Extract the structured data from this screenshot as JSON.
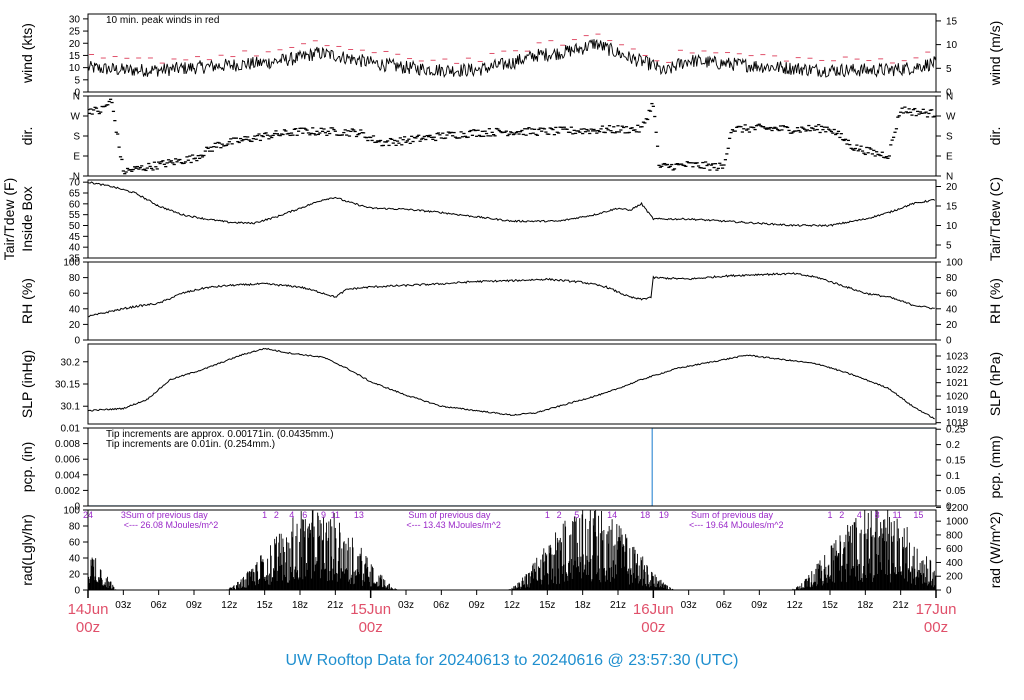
{
  "footer": {
    "title": "UW Rooftop Data for 20240613  to  20240616 @ 23:57:30  (UTC)",
    "color": "#1f8fcf"
  },
  "colors": {
    "trace": "#000000",
    "peak": "#e0506a",
    "note_tip_eng": "#e0506a",
    "note_tip_si": "#3d8fd6",
    "note_rad": "#9a28c8",
    "date_label": "#e0506a"
  },
  "x_axis": {
    "range_hours": [
      0,
      72
    ],
    "hour_ticks": [
      {
        "h": 3,
        "label": "03z"
      },
      {
        "h": 6,
        "label": "06z"
      },
      {
        "h": 9,
        "label": "09z"
      },
      {
        "h": 12,
        "label": "12z"
      },
      {
        "h": 15,
        "label": "15z"
      },
      {
        "h": 18,
        "label": "18z"
      },
      {
        "h": 21,
        "label": "21z"
      },
      {
        "h": 27,
        "label": "03z"
      },
      {
        "h": 30,
        "label": "06z"
      },
      {
        "h": 33,
        "label": "09z"
      },
      {
        "h": 36,
        "label": "12z"
      },
      {
        "h": 39,
        "label": "15z"
      },
      {
        "h": 42,
        "label": "18z"
      },
      {
        "h": 45,
        "label": "21z"
      },
      {
        "h": 51,
        "label": "03z"
      },
      {
        "h": 54,
        "label": "06z"
      },
      {
        "h": 57,
        "label": "09z"
      },
      {
        "h": 60,
        "label": "12z"
      },
      {
        "h": 63,
        "label": "15z"
      },
      {
        "h": 66,
        "label": "18z"
      },
      {
        "h": 69,
        "label": "21z"
      }
    ],
    "day_labels": [
      {
        "h": 0,
        "date": "14Jun",
        "time": "00z"
      },
      {
        "h": 24,
        "date": "15Jun",
        "time": "00z"
      },
      {
        "h": 48,
        "date": "16Jun",
        "time": "00z"
      },
      {
        "h": 72,
        "date": "17Jun",
        "time": "00z"
      }
    ]
  },
  "panels": [
    {
      "id": "wind",
      "left_label": [
        "wind (kts)"
      ],
      "right_label": "wind (m/s)",
      "left_range": [
        0,
        32
      ],
      "left_ticks": [
        0,
        5,
        10,
        15,
        20,
        25,
        30
      ],
      "right_range": [
        0,
        16.46
      ],
      "right_ticks": [
        0,
        5,
        10,
        15
      ],
      "annotations": [
        {
          "text": "10 min. peak winds in red",
          "color_key": "peak"
        }
      ],
      "series": {
        "style": "noisy-line",
        "base": [
          [
            0,
            10
          ],
          [
            3,
            9
          ],
          [
            6,
            9
          ],
          [
            9,
            10
          ],
          [
            12,
            11
          ],
          [
            15,
            12
          ],
          [
            18,
            14
          ],
          [
            19.5,
            16
          ],
          [
            21,
            15
          ],
          [
            24,
            12
          ],
          [
            27,
            10
          ],
          [
            30,
            9
          ],
          [
            33,
            9
          ],
          [
            36,
            12
          ],
          [
            38,
            15
          ],
          [
            40,
            16
          ],
          [
            42,
            18
          ],
          [
            43,
            20
          ],
          [
            44,
            18
          ],
          [
            46,
            14
          ],
          [
            48,
            11
          ],
          [
            49,
            8
          ],
          [
            50,
            11
          ],
          [
            51,
            13
          ],
          [
            53,
            12
          ],
          [
            56,
            11
          ],
          [
            59,
            10
          ],
          [
            62,
            9
          ],
          [
            65,
            9
          ],
          [
            68,
            9
          ],
          [
            70,
            10
          ],
          [
            72,
            12
          ]
        ],
        "noise": 2.8
      },
      "peaks": {
        "offset": 3.5,
        "spacing_hours": 1.0
      }
    },
    {
      "id": "dir",
      "left_label": [
        "dir."
      ],
      "right_label": "dir.",
      "left_range": [
        0,
        360
      ],
      "left_ticks": [
        0,
        90,
        180,
        270,
        360
      ],
      "tick_names": [
        "N",
        "E",
        "S",
        "W",
        "N"
      ],
      "right_range": [
        0,
        360
      ],
      "right_ticks": [
        0,
        90,
        180,
        270,
        360
      ],
      "series": {
        "style": "dashes",
        "base": [
          [
            0,
            300
          ],
          [
            1,
            290
          ],
          [
            2,
            340
          ],
          [
            3,
            20
          ],
          [
            5,
            40
          ],
          [
            7,
            60
          ],
          [
            9,
            80
          ],
          [
            10,
            110
          ],
          [
            11,
            140
          ],
          [
            13,
            160
          ],
          [
            15,
            180
          ],
          [
            18,
            200
          ],
          [
            21,
            200
          ],
          [
            23,
            195
          ],
          [
            24,
            170
          ],
          [
            25,
            150
          ],
          [
            27,
            160
          ],
          [
            30,
            180
          ],
          [
            33,
            195
          ],
          [
            36,
            200
          ],
          [
            39,
            200
          ],
          [
            42,
            205
          ],
          [
            45,
            210
          ],
          [
            47,
            210
          ],
          [
            48,
            330
          ],
          [
            48.5,
            40
          ],
          [
            51,
            50
          ],
          [
            54,
            40
          ],
          [
            54.6,
            210
          ],
          [
            57,
            215
          ],
          [
            60,
            210
          ],
          [
            63,
            215
          ],
          [
            65,
            130
          ],
          [
            67,
            100
          ],
          [
            68,
            95
          ],
          [
            69,
            300
          ],
          [
            70,
            290
          ],
          [
            72,
            280
          ]
        ],
        "noise": 18
      }
    },
    {
      "id": "temp",
      "left_label": [
        "Tair/Tdew (F)",
        "Inside Box"
      ],
      "right_label": "Tair/Tdew (C)",
      "left_range": [
        35,
        71
      ],
      "left_ticks": [
        35,
        40,
        45,
        50,
        55,
        60,
        65,
        70
      ],
      "right_range": [
        1.667,
        21.667
      ],
      "right_ticks": [
        5,
        10,
        15,
        20
      ],
      "series": {
        "style": "line",
        "base": [
          [
            0,
            70
          ],
          [
            2,
            68
          ],
          [
            4,
            65
          ],
          [
            6,
            59
          ],
          [
            8,
            55
          ],
          [
            10,
            53
          ],
          [
            12,
            51.5
          ],
          [
            14,
            51
          ],
          [
            16,
            54
          ],
          [
            18,
            58
          ],
          [
            20,
            62
          ],
          [
            21,
            63
          ],
          [
            22,
            61
          ],
          [
            24,
            58
          ],
          [
            27,
            57.5
          ],
          [
            30,
            56
          ],
          [
            33,
            54
          ],
          [
            36,
            52
          ],
          [
            40,
            52
          ],
          [
            43,
            55
          ],
          [
            45,
            58
          ],
          [
            46,
            57
          ],
          [
            47,
            60
          ],
          [
            48,
            53
          ],
          [
            51,
            53
          ],
          [
            54,
            52
          ],
          [
            57,
            51
          ],
          [
            60,
            50
          ],
          [
            63,
            50
          ],
          [
            66,
            53
          ],
          [
            68,
            56
          ],
          [
            70,
            60
          ],
          [
            72,
            62
          ]
        ],
        "noise": 0.4
      }
    },
    {
      "id": "rh",
      "left_label": [
        "RH (%)"
      ],
      "right_label": "RH (%)",
      "left_range": [
        0,
        100
      ],
      "left_ticks": [
        0,
        20,
        40,
        60,
        80,
        100
      ],
      "right_range": [
        0,
        100
      ],
      "right_ticks": [
        0,
        20,
        40,
        60,
        80,
        100
      ],
      "series": {
        "style": "line",
        "base": [
          [
            0,
            30
          ],
          [
            2,
            37
          ],
          [
            4,
            43
          ],
          [
            6,
            47
          ],
          [
            8,
            60
          ],
          [
            10,
            67
          ],
          [
            12,
            70
          ],
          [
            15,
            72
          ],
          [
            18,
            68
          ],
          [
            20,
            60
          ],
          [
            21,
            55
          ],
          [
            22,
            65
          ],
          [
            24,
            68
          ],
          [
            27,
            70
          ],
          [
            30,
            72
          ],
          [
            33,
            75
          ],
          [
            36,
            76
          ],
          [
            39,
            78
          ],
          [
            42,
            74
          ],
          [
            44,
            68
          ],
          [
            46,
            55
          ],
          [
            47,
            52
          ],
          [
            47.8,
            55
          ],
          [
            48,
            80
          ],
          [
            51,
            78
          ],
          [
            54,
            82
          ],
          [
            57,
            84
          ],
          [
            60,
            85
          ],
          [
            62,
            80
          ],
          [
            64,
            70
          ],
          [
            66,
            60
          ],
          [
            68,
            55
          ],
          [
            70,
            45
          ],
          [
            72,
            40
          ]
        ],
        "noise": 1.2
      }
    },
    {
      "id": "slp",
      "left_label": [
        "SLP (inHg)"
      ],
      "right_label": "SLP (hPa)",
      "left_range": [
        30.06,
        30.24
      ],
      "left_ticks": [
        30.1,
        30.15,
        30.2
      ],
      "right_range": [
        1017.9,
        1023.9
      ],
      "right_ticks": [
        1018,
        1019,
        1020,
        1021,
        1022,
        1023
      ],
      "series": {
        "style": "line",
        "base": [
          [
            0,
            30.09
          ],
          [
            3,
            30.095
          ],
          [
            5,
            30.115
          ],
          [
            7,
            30.16
          ],
          [
            10,
            30.185
          ],
          [
            13,
            30.215
          ],
          [
            15,
            30.23
          ],
          [
            17,
            30.22
          ],
          [
            20,
            30.21
          ],
          [
            22,
            30.185
          ],
          [
            24,
            30.155
          ],
          [
            27,
            30.125
          ],
          [
            30,
            30.1
          ],
          [
            33,
            30.09
          ],
          [
            36,
            30.08
          ],
          [
            38,
            30.085
          ],
          [
            40,
            30.1
          ],
          [
            44,
            30.13
          ],
          [
            47,
            30.16
          ],
          [
            50,
            30.185
          ],
          [
            53,
            30.2
          ],
          [
            56,
            30.215
          ],
          [
            59,
            30.205
          ],
          [
            62,
            30.195
          ],
          [
            65,
            30.17
          ],
          [
            68,
            30.14
          ],
          [
            70,
            30.1
          ],
          [
            72,
            30.07
          ]
        ],
        "noise": 0.0015
      }
    },
    {
      "id": "pcp",
      "left_label": [
        "pcp. (in)"
      ],
      "right_label": "pcp. (mm)",
      "left_range": [
        0,
        0.01
      ],
      "left_ticks": [
        0,
        0.002,
        0.004,
        0.006,
        0.008,
        0.01
      ],
      "right_range": [
        0,
        0.254
      ],
      "right_ticks": [
        0,
        0.05,
        0.1,
        0.15,
        0.2,
        0.25
      ],
      "annotations": [
        {
          "text": "Tip increments are approx. 0.00171in. (0.0435mm.)",
          "color_key": "note_tip_eng"
        },
        {
          "text": "Tip increments are 0.01in. (0.254mm.)",
          "color_key": "note_tip_si"
        }
      ],
      "series": {
        "style": "step",
        "color": "#3d8fd6",
        "points": [
          [
            0,
            0
          ],
          [
            47.9,
            0
          ],
          [
            47.9,
            0.01
          ],
          [
            72,
            0.01
          ]
        ]
      }
    },
    {
      "id": "rad",
      "left_label": [
        "rad(Lgly/hr)"
      ],
      "right_label": "rad (W/m^2)",
      "left_range": [
        0,
        100
      ],
      "left_ticks": [
        0,
        20,
        40,
        60,
        80,
        100
      ],
      "right_range": [
        0,
        1162
      ],
      "right_ticks": [
        0,
        200,
        400,
        600,
        800,
        1000,
        1200
      ],
      "hour_labels": [
        {
          "h": 0,
          "label": "24"
        },
        {
          "h": 3,
          "label": "3"
        },
        {
          "h": 15,
          "label": "1"
        },
        {
          "h": 16,
          "label": "2"
        },
        {
          "h": 17.3,
          "label": "4"
        },
        {
          "h": 18.4,
          "label": "6"
        },
        {
          "h": 20,
          "label": "9"
        },
        {
          "h": 21,
          "label": "11"
        },
        {
          "h": 23,
          "label": "13"
        },
        {
          "h": 39,
          "label": "1"
        },
        {
          "h": 40,
          "label": "2"
        },
        {
          "h": 41.5,
          "label": "5"
        },
        {
          "h": 44.5,
          "label": "14"
        },
        {
          "h": 47.3,
          "label": "18"
        },
        {
          "h": 48.9,
          "label": "19"
        },
        {
          "h": 63,
          "label": "1"
        },
        {
          "h": 64,
          "label": "2"
        },
        {
          "h": 65.5,
          "label": "4"
        },
        {
          "h": 67,
          "label": "8"
        },
        {
          "h": 68.7,
          "label": "11"
        },
        {
          "h": 70.5,
          "label": "15"
        }
      ],
      "day_notes": [
        {
          "h": 3.2,
          "line1": "Sum of previous day",
          "line2": "<--- 26.08 MJoules/m^2"
        },
        {
          "h": 27.2,
          "line1": "Sum of previous day",
          "line2": "<--- 13.43 MJoules/m^2"
        },
        {
          "h": 51.2,
          "line1": "Sum of previous day",
          "line2": "<--- 19.64 MJoules/m^2"
        }
      ],
      "series": {
        "style": "bars",
        "days": [
          {
            "start": -1,
            "peak_h": 0.4,
            "end": 2.5,
            "peak": 45
          },
          {
            "start": 11.5,
            "peak_h": 19.5,
            "end": 26.5,
            "peak": 100
          },
          {
            "start": 35.5,
            "peak_h": 42.5,
            "end": 50,
            "peak": 100
          },
          {
            "start": 59.5,
            "peak_h": 67,
            "end": 74,
            "peak": 100
          }
        ]
      }
    }
  ]
}
